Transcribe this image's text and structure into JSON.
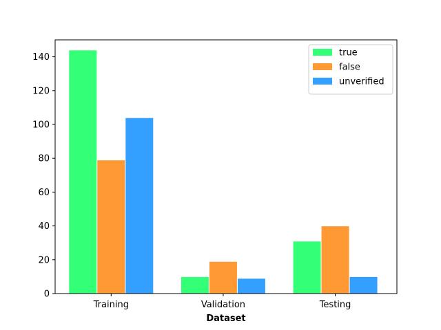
{
  "chart_data": {
    "type": "bar",
    "title": "",
    "xlabel": "Dataset",
    "ylabel": "",
    "categories": [
      "Training",
      "Validation",
      "Testing"
    ],
    "series": [
      {
        "name": "true",
        "color": "#33ff77",
        "values": [
          144,
          10,
          31
        ]
      },
      {
        "name": "false",
        "color": "#ff9933",
        "values": [
          79,
          19,
          40
        ]
      },
      {
        "name": "unverified",
        "color": "#339fff",
        "values": [
          104,
          9,
          10
        ]
      }
    ],
    "ylim": [
      0,
      150
    ],
    "yticks": [
      0,
      20,
      40,
      60,
      80,
      100,
      120,
      140
    ],
    "grid": false,
    "legend_position": "top-right"
  }
}
